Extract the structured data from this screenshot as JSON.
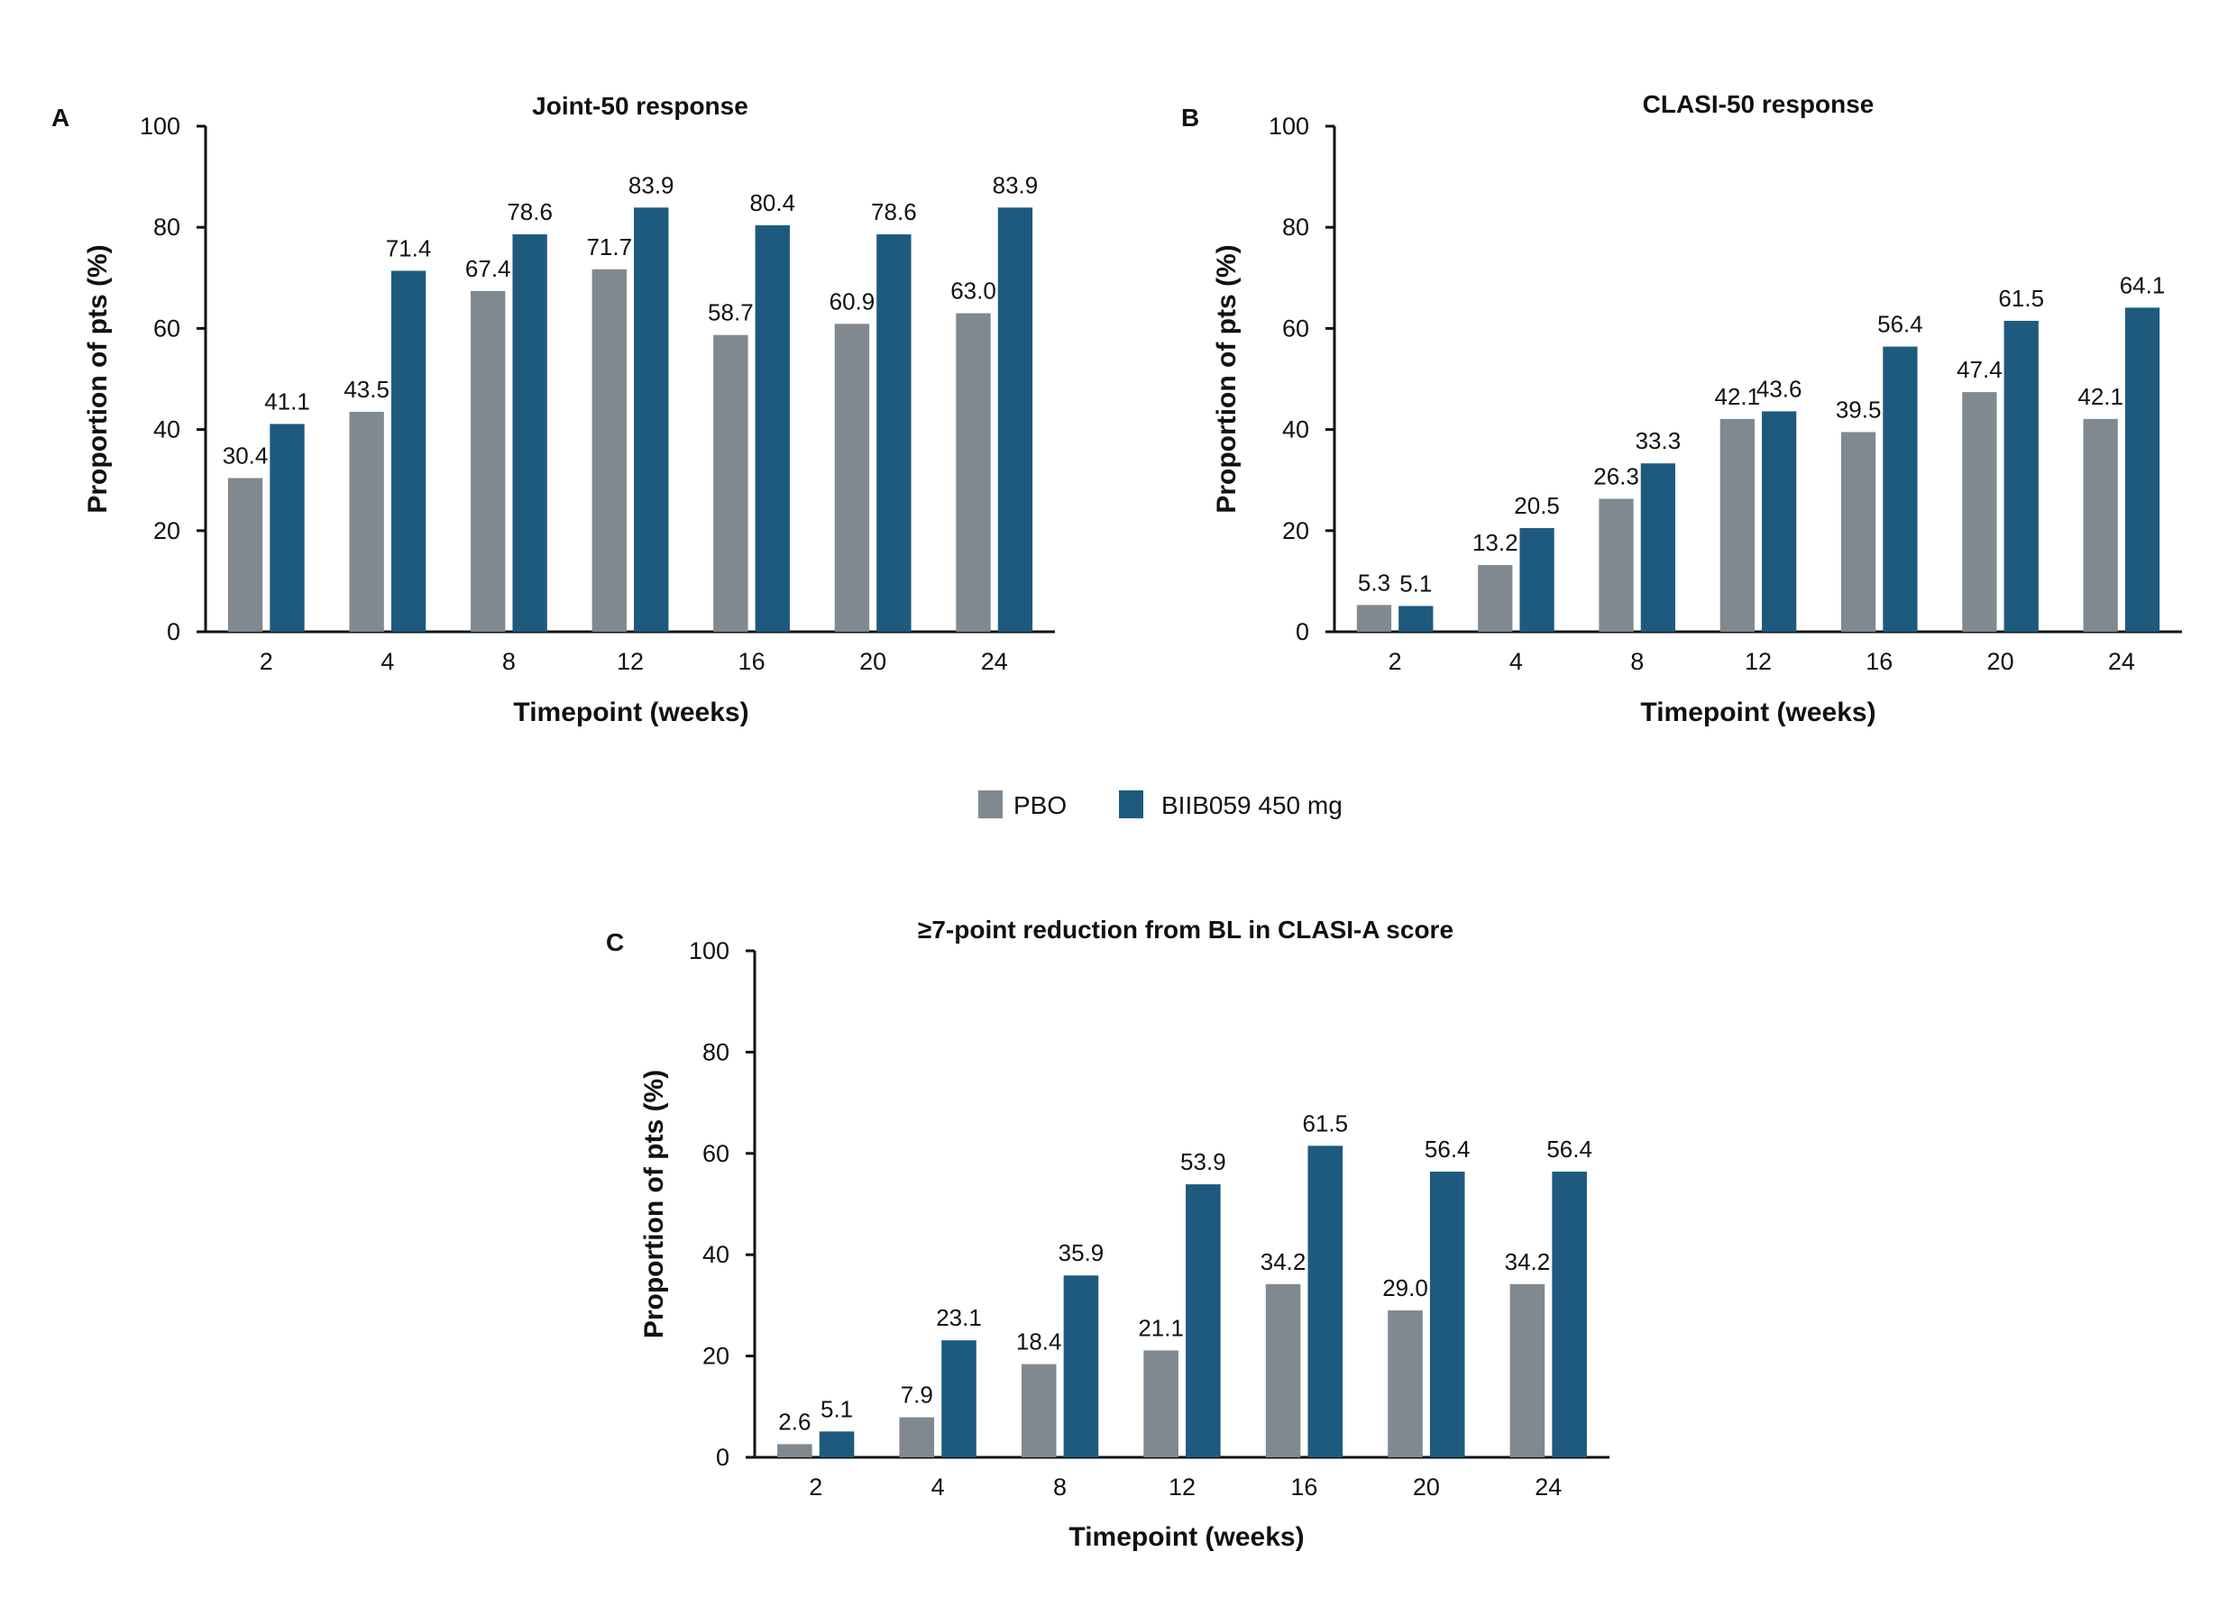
{
  "colors": {
    "pbo": "#808990",
    "biib": "#1e5a7e",
    "axis": "#111111"
  },
  "legend": {
    "pbo_label": "PBO",
    "biib_label": "BIIB059 450 mg"
  },
  "chart_data": [
    {
      "panel": "A",
      "type": "bar",
      "title": "Joint-50 response",
      "xlabel": "Timepoint (weeks)",
      "ylabel": "Proportion of pts (%)",
      "ylim": [
        0,
        100
      ],
      "yticks": [
        0,
        20,
        40,
        60,
        80,
        100
      ],
      "categories": [
        "2",
        "4",
        "8",
        "12",
        "16",
        "20",
        "24"
      ],
      "series": [
        {
          "name": "PBO",
          "values": [
            30.4,
            43.5,
            67.4,
            71.7,
            58.7,
            60.9,
            63.0
          ],
          "labels": [
            "30.4",
            "43.5",
            "67.4",
            "71.7",
            "58.7",
            "60.9",
            "63.0"
          ]
        },
        {
          "name": "BIIB059 450 mg",
          "values": [
            41.1,
            71.4,
            78.6,
            83.9,
            80.4,
            78.6,
            83.9
          ],
          "labels": [
            "41.1",
            "71.4",
            "78.6",
            "83.9",
            "80.4",
            "78.6",
            "83.9"
          ]
        }
      ]
    },
    {
      "panel": "B",
      "type": "bar",
      "title": "CLASI-50 response",
      "xlabel": "Timepoint (weeks)",
      "ylabel": "Proportion of pts (%)",
      "ylim": [
        0,
        100
      ],
      "yticks": [
        0,
        20,
        40,
        60,
        80,
        100
      ],
      "categories": [
        "2",
        "4",
        "8",
        "12",
        "16",
        "20",
        "24"
      ],
      "series": [
        {
          "name": "PBO",
          "values": [
            5.3,
            13.2,
            26.3,
            42.1,
            39.5,
            47.4,
            42.1
          ],
          "labels": [
            "5.3",
            "13.2",
            "26.3",
            "42.1",
            "39.5",
            "47.4",
            "42.1"
          ]
        },
        {
          "name": "BIIB059 450 mg",
          "values": [
            5.1,
            20.5,
            33.3,
            43.6,
            56.4,
            61.5,
            64.1
          ],
          "labels": [
            "5.1",
            "20.5",
            "33.3",
            "43.6",
            "56.4",
            "61.5",
            "64.1"
          ]
        }
      ]
    },
    {
      "panel": "C",
      "type": "bar",
      "title": "≥7-point reduction from BL in CLASI-A score",
      "xlabel": "Timepoint (weeks)",
      "ylabel": "Proportion of pts (%)",
      "ylim": [
        0,
        100
      ],
      "yticks": [
        0,
        20,
        40,
        60,
        80,
        100
      ],
      "categories": [
        "2",
        "4",
        "8",
        "12",
        "16",
        "20",
        "24"
      ],
      "series": [
        {
          "name": "PBO",
          "values": [
            2.6,
            7.9,
            18.4,
            21.1,
            34.2,
            29.0,
            34.2
          ],
          "labels": [
            "2.6",
            "7.9",
            "18.4",
            "21.1",
            "34.2",
            "29.0",
            "34.2"
          ]
        },
        {
          "name": "BIIB059 450 mg",
          "values": [
            5.1,
            23.1,
            35.9,
            53.9,
            61.5,
            56.4,
            56.4
          ],
          "labels": [
            "5.1",
            "23.1",
            "35.9",
            "53.9",
            "61.5",
            "56.4",
            "56.4"
          ]
        }
      ]
    }
  ]
}
